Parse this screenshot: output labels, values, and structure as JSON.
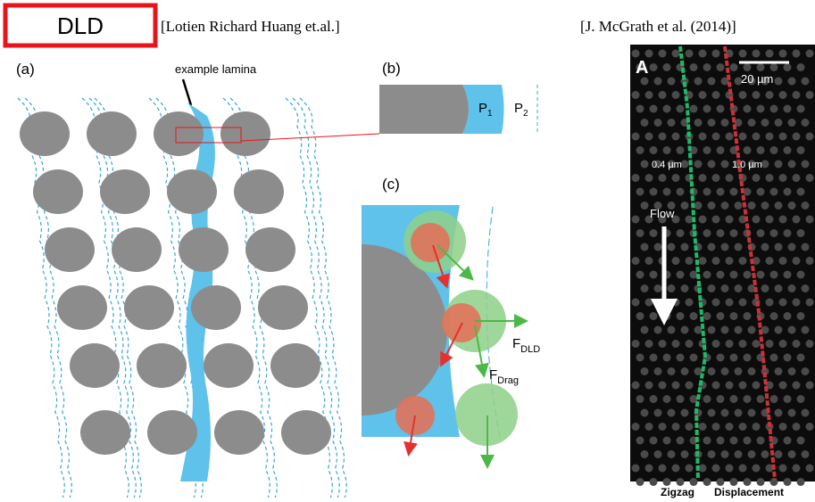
{
  "header": {
    "badge": "DLD",
    "citation_left": "[Lotien Richard Huang et.al.]",
    "citation_right": "[J. McGrath et al. (2014)]"
  },
  "panel_a": {
    "label": "(a)",
    "annotation": "example lamina"
  },
  "panel_b": {
    "label": "(b)",
    "p1": {
      "base": "P",
      "sub": "1"
    },
    "p2": {
      "base": "P",
      "sub": "2"
    }
  },
  "panel_c": {
    "label": "(c)",
    "f_dld": {
      "base": "F",
      "sub": "DLD"
    },
    "f_drag": {
      "base": "F",
      "sub": "Drag"
    }
  },
  "photo": {
    "label": "A",
    "scale": "20 µm",
    "size_small": "0.4 µm",
    "size_large": "1.0 µm",
    "flow": "Flow",
    "caption_left": "Zigzag",
    "caption_right": "Displacement"
  }
}
